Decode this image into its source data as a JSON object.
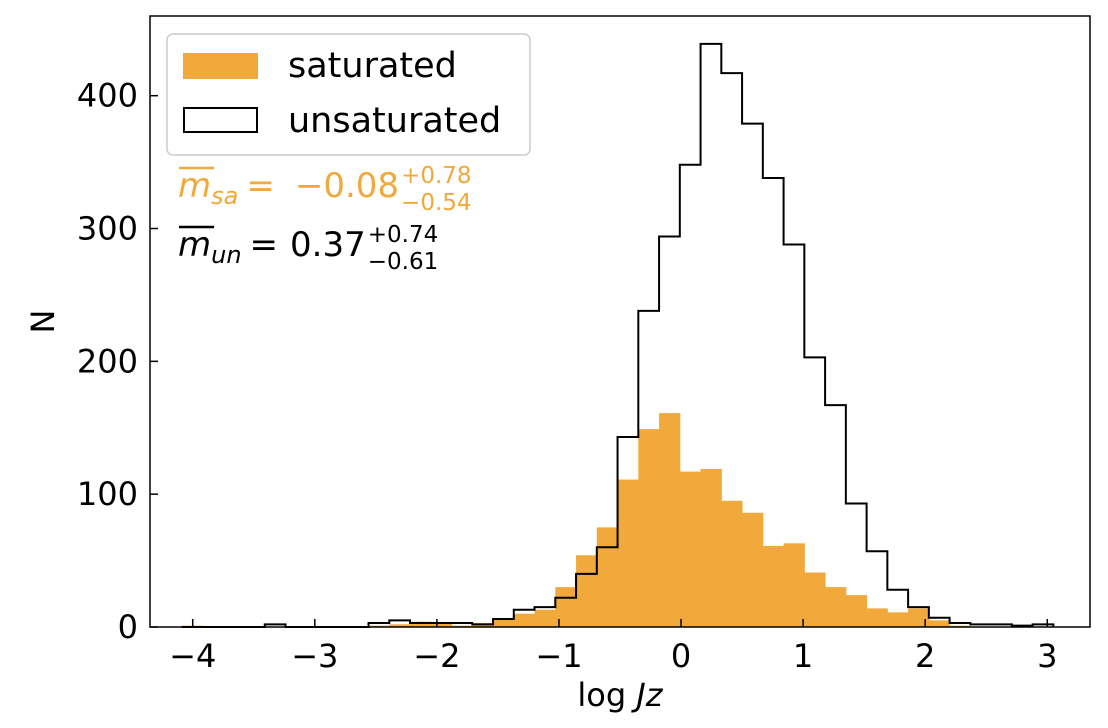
{
  "chart_data": {
    "type": "bar",
    "xlabel_prefix": "log ",
    "xlabel_var": "Jz",
    "ylabel": "N",
    "xlim": [
      -4.35,
      3.35
    ],
    "ylim": [
      0,
      460
    ],
    "x_ticks": [
      -4,
      -3,
      -2,
      -1,
      0,
      1,
      2,
      3
    ],
    "x_tick_labels": [
      "−4",
      "−3",
      "−2",
      "−1",
      "0",
      "1",
      "2",
      "3"
    ],
    "y_ticks": [
      0,
      100,
      200,
      300,
      400
    ],
    "y_tick_labels": [
      "0",
      "100",
      "200",
      "300",
      "400"
    ],
    "bin_edges": [
      -4.09,
      -3.92,
      -3.75,
      -3.58,
      -3.41,
      -3.24,
      -3.07,
      -2.9,
      -2.73,
      -2.56,
      -2.39,
      -2.22,
      -2.05,
      -1.88,
      -1.71,
      -1.54,
      -1.37,
      -1.2,
      -1.03,
      -0.86,
      -0.69,
      -0.52,
      -0.35,
      -0.18,
      -0.01,
      0.16,
      0.33,
      0.5,
      0.67,
      0.84,
      1.01,
      1.18,
      1.35,
      1.52,
      1.69,
      1.86,
      2.03,
      2.2,
      2.37,
      2.54,
      2.71,
      2.88,
      3.05
    ],
    "series": [
      {
        "name": "saturated",
        "style": "filled",
        "color": "#f0a93a",
        "values": [
          1,
          0,
          0,
          0,
          0,
          0,
          0,
          0,
          0,
          1,
          2,
          4,
          3,
          1,
          3,
          6,
          10,
          13,
          30,
          54,
          75,
          111,
          149,
          161,
          117,
          119,
          95,
          86,
          61,
          63,
          41,
          30,
          24,
          14,
          11,
          14,
          5,
          1,
          0,
          0,
          1,
          0
        ]
      },
      {
        "name": "unsaturated",
        "style": "step",
        "color": "#000000",
        "values": [
          0,
          0,
          0,
          0,
          2,
          0,
          0,
          0,
          0,
          3,
          5,
          3,
          3,
          3,
          2,
          6,
          13,
          15,
          22,
          40,
          60,
          143,
          238,
          294,
          348,
          439,
          417,
          379,
          338,
          288,
          203,
          167,
          93,
          57,
          28,
          15,
          7,
          3,
          2,
          2,
          1,
          2
        ]
      }
    ],
    "legend_position": "top-left",
    "annotations": [
      {
        "symbol": "m",
        "subscript": "sa",
        "value": "−0.08",
        "upper": "+0.78",
        "lower": "−0.54",
        "color": "#f0a93a"
      },
      {
        "symbol": "m",
        "subscript": "un",
        "value": "0.37",
        "upper": "+0.74",
        "lower": "−0.61",
        "color": "#000000"
      }
    ]
  }
}
